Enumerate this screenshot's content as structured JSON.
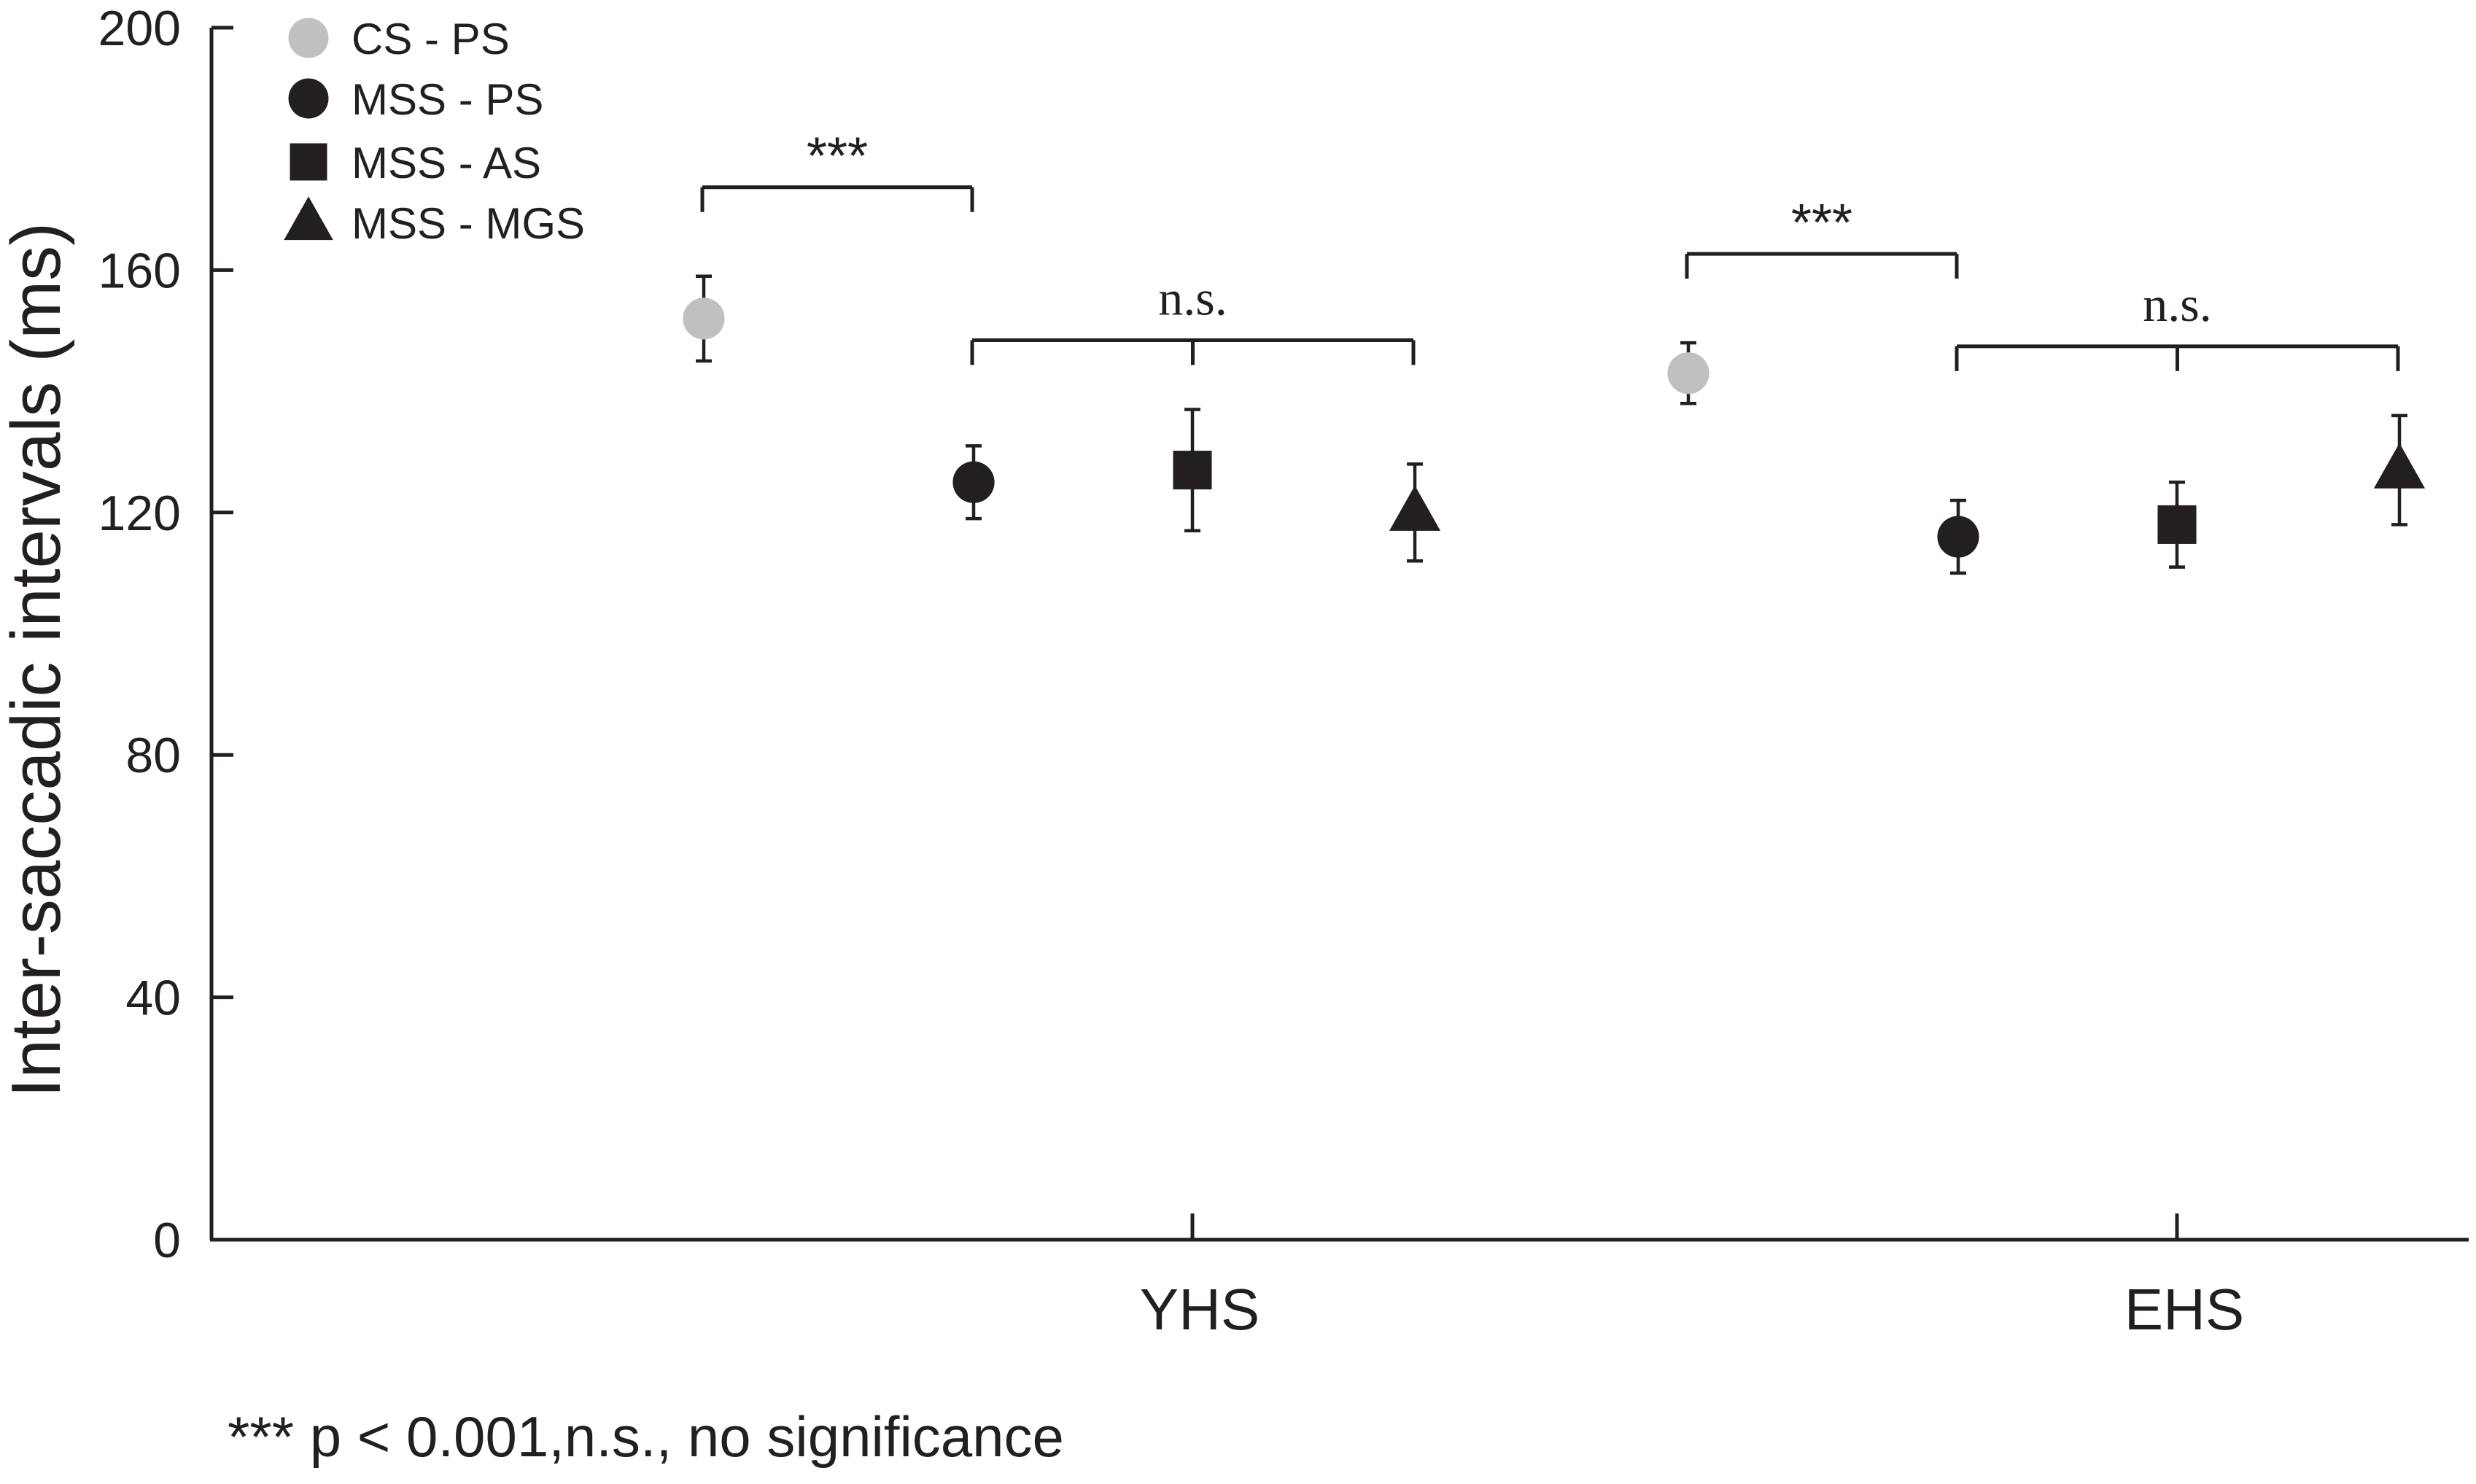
{
  "chart_data": {
    "type": "scatter",
    "ylabel": "Inter-saccadic intervals (ms)",
    "xlabel": "",
    "ylim": [
      0,
      200
    ],
    "yticks": [
      0,
      40,
      80,
      120,
      160,
      200
    ],
    "groups": [
      "YHS",
      "EHS"
    ],
    "series": [
      {
        "name": "CS - PS",
        "marker": "circle",
        "color": "#c0c0c0",
        "values": [
          152,
          143
        ],
        "errors": [
          7,
          5
        ]
      },
      {
        "name": "MSS - PS",
        "marker": "circle",
        "color": "#231f20",
        "values": [
          125,
          116
        ],
        "errors": [
          6,
          6
        ]
      },
      {
        "name": "MSS - AS",
        "marker": "square",
        "color": "#231f20",
        "values": [
          127,
          118
        ],
        "errors": [
          10,
          7
        ]
      },
      {
        "name": "MSS - MGS",
        "marker": "triangle",
        "color": "#231f20",
        "values": [
          120,
          127
        ],
        "errors": [
          8,
          9
        ]
      }
    ],
    "annotations": [
      {
        "group": "YHS",
        "from": "CS - PS",
        "to": "MSS - PS",
        "label": "***"
      },
      {
        "group": "YHS",
        "from": "MSS - PS",
        "to": "MSS - MGS",
        "label": "n.s."
      },
      {
        "group": "EHS",
        "from": "CS - PS",
        "to": "MSS - PS",
        "label": "***"
      },
      {
        "group": "EHS",
        "from": "MSS - PS",
        "to": "MSS - MGS",
        "label": "n.s."
      }
    ],
    "legend_position": "top-left",
    "grid": false
  },
  "footnote": "*** p < 0.001,n.s., no significance"
}
